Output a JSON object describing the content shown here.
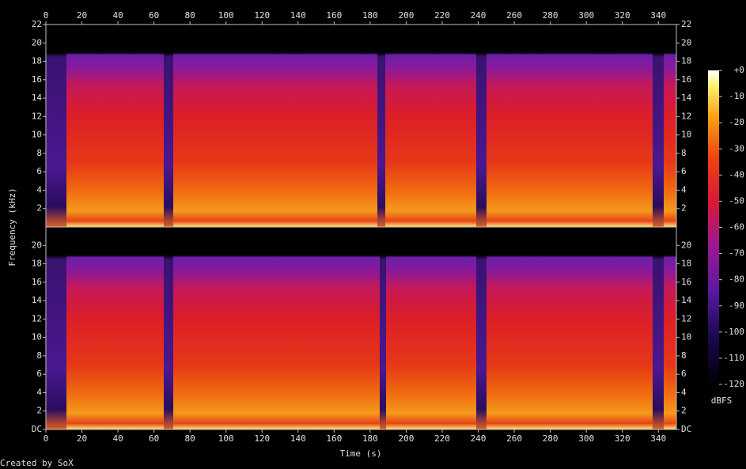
{
  "chart_data": {
    "type": "spectrogram",
    "x_label": "Time (s)",
    "y_label": "Frequency (kHz)",
    "footer": "Created by SoX",
    "xlim": [
      0,
      350
    ],
    "xticks": [
      0,
      20,
      40,
      60,
      80,
      100,
      120,
      140,
      160,
      180,
      200,
      220,
      240,
      260,
      280,
      300,
      320,
      340
    ],
    "channels": [
      {
        "ylim": [
          0,
          22
        ],
        "yticks": [
          2,
          4,
          6,
          8,
          10,
          12,
          14,
          16,
          18,
          20,
          22
        ]
      },
      {
        "ylim": [
          0,
          22
        ],
        "yticks": [
          {
            "value": 0,
            "label": "DC"
          },
          2,
          4,
          6,
          8,
          10,
          12,
          14,
          16,
          18,
          20
        ]
      }
    ],
    "colorbar": {
      "label": "dBFS",
      "zlim": [
        -120,
        0
      ],
      "ticks": [
        {
          "value": 0,
          "label": "+0"
        },
        -10,
        -20,
        -30,
        -40,
        -50,
        -60,
        -70,
        -80,
        -90,
        -100,
        -110,
        -120
      ]
    }
  }
}
